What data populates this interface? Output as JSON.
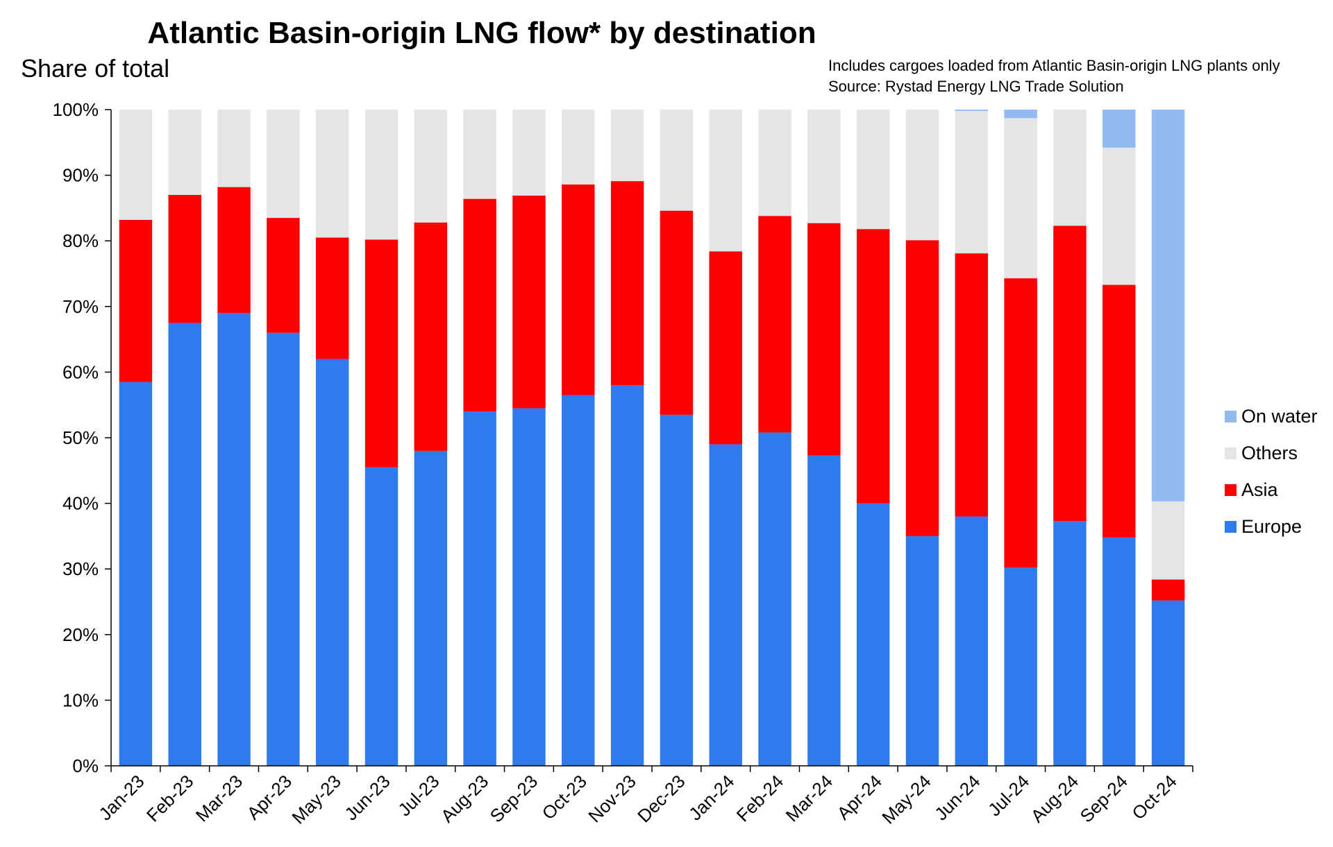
{
  "chart_data": {
    "type": "bar",
    "stacked": true,
    "title": "Atlantic Basin-origin LNG flow* by destination",
    "ylabel": "Share of total",
    "notes": [
      "Includes cargoes loaded from Atlantic Basin-origin LNG plants only",
      "Source: Rystad Energy LNG Trade Solution"
    ],
    "ylim": [
      0,
      100
    ],
    "y_ticks": [
      "0%",
      "10%",
      "20%",
      "30%",
      "40%",
      "50%",
      "60%",
      "70%",
      "80%",
      "90%",
      "100%"
    ],
    "legend_position": "right",
    "categories": [
      "Jan-23",
      "Feb-23",
      "Mar-23",
      "Apr-23",
      "May-23",
      "Jun-23",
      "Jul-23",
      "Aug-23",
      "Sep-23",
      "Oct-23",
      "Nov-23",
      "Dec-23",
      "Jan-24",
      "Feb-24",
      "Mar-24",
      "Apr-24",
      "May-24",
      "Jun-24",
      "Jul-24",
      "Aug-24",
      "Sep-24",
      "Oct-24"
    ],
    "series": [
      {
        "name": "Europe",
        "color": "#2F7BEE",
        "values": [
          58.5,
          67.5,
          69.0,
          66.0,
          62.0,
          45.5,
          48.0,
          54.0,
          54.5,
          56.5,
          58.0,
          53.5,
          49.0,
          50.8,
          47.3,
          40.0,
          35.0,
          38.0,
          30.2,
          37.3,
          34.8,
          25.2
        ]
      },
      {
        "name": "Asia",
        "color": "#FF0000",
        "values": [
          24.7,
          19.5,
          19.2,
          17.5,
          18.5,
          34.7,
          34.8,
          32.4,
          32.4,
          32.1,
          31.1,
          31.1,
          29.4,
          33.0,
          35.4,
          41.8,
          45.1,
          40.1,
          44.1,
          45.0,
          38.5,
          3.2
        ]
      },
      {
        "name": "Others",
        "color": "#E5E5E5",
        "values": [
          16.8,
          13.0,
          11.8,
          16.5,
          19.5,
          19.8,
          17.2,
          13.6,
          13.1,
          11.4,
          10.9,
          15.4,
          21.6,
          16.2,
          17.3,
          18.2,
          19.9,
          21.7,
          24.4,
          17.7,
          20.9,
          11.9
        ]
      },
      {
        "name": "On water",
        "color": "#93BAF3",
        "values": [
          0,
          0,
          0,
          0,
          0,
          0,
          0,
          0,
          0,
          0,
          0,
          0,
          0,
          0,
          0,
          0,
          0,
          0.2,
          1.3,
          0,
          5.8,
          59.7
        ]
      }
    ]
  }
}
